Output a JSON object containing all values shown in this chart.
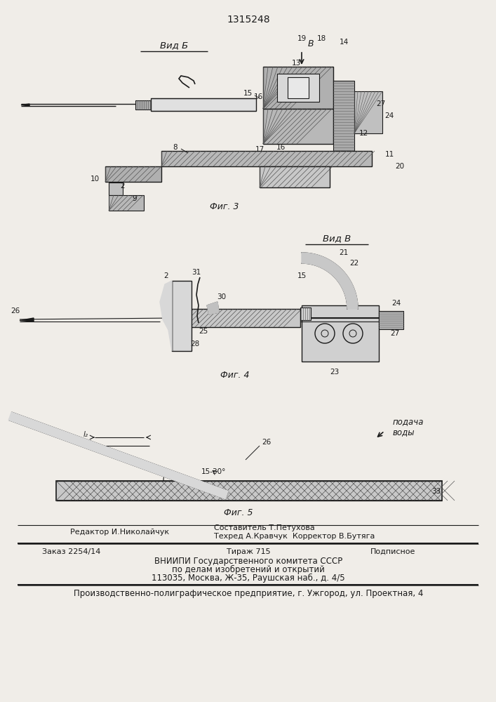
{
  "patent_number": "1315248",
  "bg_color": "#f0ede8",
  "text_color": "#1a1a1a",
  "line_color": "#1a1a1a",
  "hatch_color": "#555555",
  "vid_b": "Вид Б",
  "vid_v": "Вид В",
  "fig3": "Фиг. 3",
  "fig4": "Фиг. 4",
  "fig5": "Фиг. 5",
  "arrow_b": "В",
  "bottom_left1": "Редактор И.Николайчук",
  "bottom_center1": "Составитель Т.Петухова",
  "bottom_center2": "Техред А.Кравчук  Корректор В.Бутяга",
  "order": "Заказ 2254/14",
  "tirazh": "Тираж 715",
  "podpisnoe": "Подписное",
  "vniip1": "ВНИИПИ Государственного комитета СССР",
  "vniip2": "по делам изобретений и открытий",
  "vniip3": "113035, Москва, Ж-35, Раушская наб., д. 4/5",
  "bottom_last": "Производственно-полиграфическое предприятие, г. Ужгород, ул. Проектная, 4"
}
